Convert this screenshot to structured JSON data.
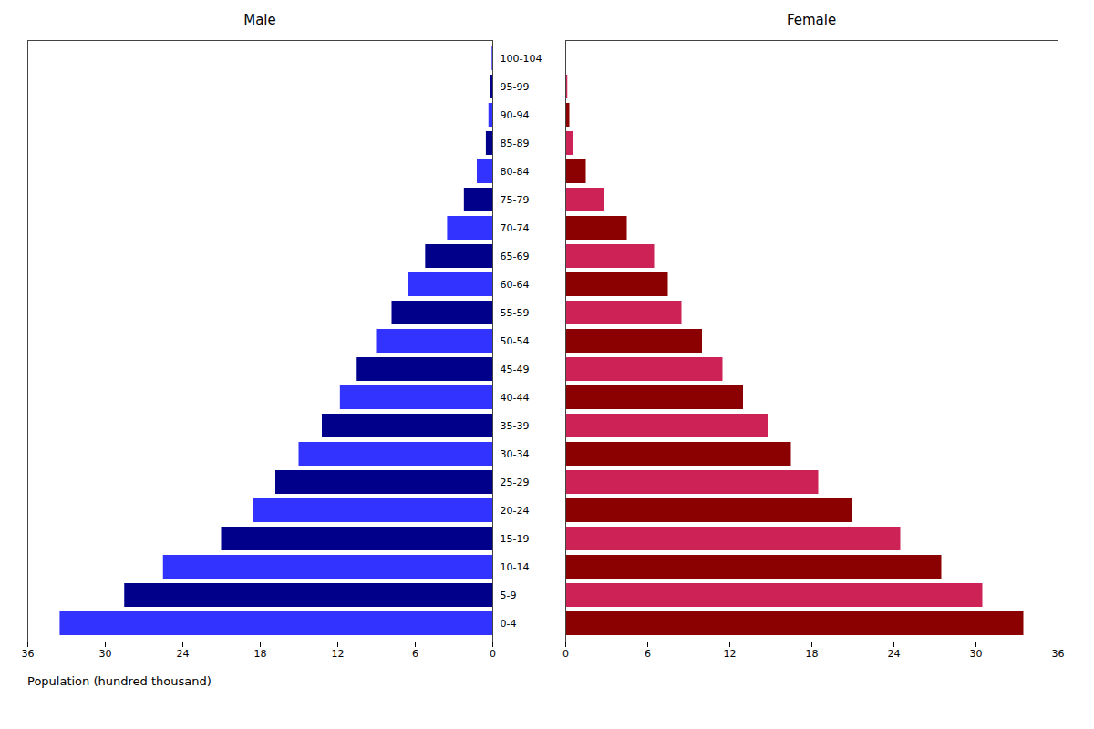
{
  "chart_data": {
    "type": "bar",
    "orientation": "horizontal",
    "categories": [
      "0-4",
      "5-9",
      "10-14",
      "15-19",
      "20-24",
      "25-29",
      "30-34",
      "35-39",
      "40-44",
      "45-49",
      "50-54",
      "55-59",
      "60-64",
      "65-69",
      "70-74",
      "75-79",
      "80-84",
      "85-89",
      "90-94",
      "95-99",
      "100-104"
    ],
    "series": [
      {
        "name": "Male",
        "colors": [
          "#3333ff",
          "#00008b",
          "#3333ff",
          "#00008b",
          "#3333ff",
          "#00008b",
          "#3333ff",
          "#00008b",
          "#3333ff",
          "#00008b",
          "#3333ff",
          "#00008b",
          "#3333ff",
          "#00008b",
          "#3333ff",
          "#00008b",
          "#3333ff",
          "#00008b",
          "#3333ff",
          "#00008b",
          "#3333ff"
        ],
        "values": [
          33.5,
          28.5,
          25.5,
          21.0,
          18.5,
          16.8,
          15.0,
          13.2,
          11.8,
          10.5,
          9.0,
          7.8,
          6.5,
          5.2,
          3.5,
          2.2,
          1.2,
          0.5,
          0.3,
          0.15,
          0.05
        ]
      },
      {
        "name": "Female",
        "colors": [
          "#8b0000",
          "#cc2255",
          "#8b0000",
          "#cc2255",
          "#8b0000",
          "#cc2255",
          "#8b0000",
          "#cc2255",
          "#8b0000",
          "#cc2255",
          "#8b0000",
          "#cc2255",
          "#8b0000",
          "#cc2255",
          "#8b0000",
          "#cc2255",
          "#8b0000",
          "#cc2255",
          "#8b0000",
          "#cc2255",
          "#8b0000"
        ],
        "values": [
          33.5,
          30.5,
          27.5,
          24.5,
          21.0,
          18.5,
          16.5,
          14.8,
          13.0,
          11.5,
          10.0,
          8.5,
          7.5,
          6.5,
          4.5,
          2.8,
          1.5,
          0.6,
          0.3,
          0.15,
          0.05
        ]
      }
    ],
    "xlabel": "Population (hundred thousand)",
    "xlim": [
      0,
      36
    ],
    "xticks": [
      0,
      6,
      12,
      18,
      24,
      30,
      36
    ]
  }
}
